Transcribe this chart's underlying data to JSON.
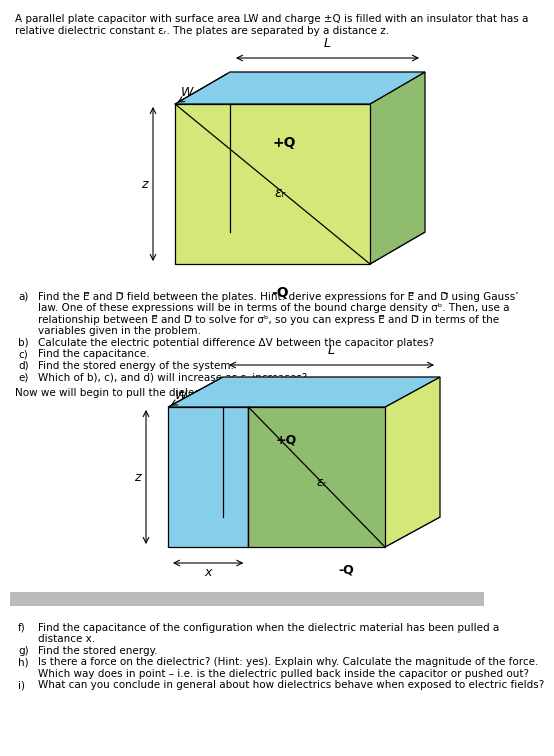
{
  "bg_color": "#ffffff",
  "diagram1": {
    "plate_color": "#87CEEB",
    "front_color": "#d4e87a",
    "right_color": "#8fbc6f",
    "label_plus_Q": "+Q",
    "label_minus_Q": "-Q",
    "label_epsilon": "εᵣ",
    "label_L": "L",
    "label_W": "W",
    "label_z": "z"
  },
  "diagram2": {
    "plate_color": "#87CEEB",
    "dielectric_front_color": "#8fbc6f",
    "dielectric_right_color": "#d4e87a",
    "air_side_color": "#87CEEB",
    "label_plus_Q": "+Q",
    "label_minus_Q": "-Q",
    "label_epsilon": "εᵣ",
    "label_L": "L",
    "label_W": "W",
    "label_z": "z",
    "label_x": "x"
  },
  "separator_color": "#bbbbbb",
  "fontsize_text": 7.5,
  "fontsize_label": 9,
  "title_line1": "A parallel plate capacitor with surface area LW and charge ±Q is filled with an insulator that has a",
  "title_line2": "relative dielectric constant εᵣ. The plates are separated by a distance z.",
  "mid_text": "Now we will begin to pull the dielectric material out from between the 2 plates.",
  "q1": [
    [
      "a)",
      "Find the E⃗ and D⃗ field between the plates. Hint: derive expressions for E⃗ and D⃗ using Gauss’"
    ],
    [
      "",
      "law. One of these expressions will be in terms of the bound charge density σᵇ. Then, use a"
    ],
    [
      "",
      "relationship between E⃗ and D⃗ to solve for σᵇ, so you can express E⃗ and D⃗ in terms of the"
    ],
    [
      "",
      "variables given in the problem."
    ],
    [
      "b)",
      "Calculate the electric potential difference ΔV between the capacitor plates?"
    ],
    [
      "c)",
      "Find the capacitance."
    ],
    [
      "d)",
      "Find the stored energy of the system."
    ],
    [
      "e)",
      "Which of b), c), and d) will increase as εᵣ increases?"
    ]
  ],
  "q2": [
    [
      "f)",
      "Find the capacitance of the configuration when the dielectric material has been pulled a"
    ],
    [
      "",
      "distance x."
    ],
    [
      "g)",
      "Find the stored energy."
    ],
    [
      "h)",
      "Is there a force on the dielectric? (Hint: yes). Explain why. Calculate the magnitude of the force."
    ],
    [
      "",
      "Which way does in point – i.e. is the dielectric pulled back inside the capacitor or pushed out?"
    ],
    [
      "i)",
      "What can you conclude in general about how dielectrics behave when exposed to electric fields?"
    ]
  ]
}
